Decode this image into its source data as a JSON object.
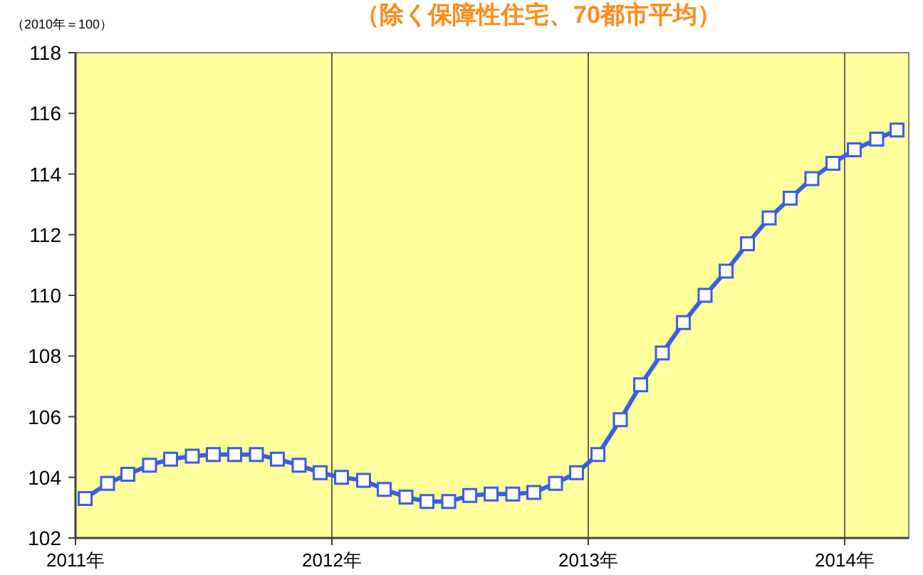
{
  "chart_data": {
    "type": "line",
    "title": "（除く保障性住宅、70都市平均）",
    "annotations": [
      "（2010年＝100）"
    ],
    "x": [
      "2011-01-15",
      "2011-02-15",
      "2011-03-15",
      "2011-04-15",
      "2011-05-15",
      "2011-06-15",
      "2011-07-15",
      "2011-08-15",
      "2011-09-15",
      "2011-10-15",
      "2011-11-15",
      "2011-12-15",
      "2012-01-15",
      "2012-02-15",
      "2012-03-15",
      "2012-04-15",
      "2012-05-15",
      "2012-06-15",
      "2012-07-15",
      "2012-08-15",
      "2012-09-15",
      "2012-10-15",
      "2012-11-15",
      "2012-12-15",
      "2013-01-15",
      "2013-02-15",
      "2013-03-15",
      "2013-04-15",
      "2013-05-15",
      "2013-06-15",
      "2013-07-15",
      "2013-08-15",
      "2013-09-15",
      "2013-10-15",
      "2013-11-15",
      "2013-12-15",
      "2014-01-15",
      "2014-02-15",
      "2014-03-15"
    ],
    "series": [
      {
        "color": "#3a5ee0",
        "values": [
          103.3,
          103.8,
          104.1,
          104.4,
          104.6,
          104.7,
          104.75,
          104.75,
          104.75,
          104.6,
          104.4,
          104.15,
          104.0,
          103.9,
          103.6,
          103.35,
          103.2,
          103.2,
          103.4,
          103.45,
          103.45,
          103.5,
          103.8,
          104.15,
          104.75,
          105.9,
          107.05,
          108.1,
          109.1,
          110.0,
          110.8,
          111.7,
          112.55,
          113.2,
          113.85,
          114.35,
          114.8,
          115.15,
          115.45
        ]
      }
    ],
    "xlim": [
      "2011-01-01",
      "2014-04-01"
    ],
    "xticks": [
      {
        "value": "2011-01-01",
        "label": "2011年"
      },
      {
        "value": "2012-01-01",
        "label": "2012年"
      },
      {
        "value": "2013-01-01",
        "label": "2013年"
      },
      {
        "value": "2014-01-01",
        "label": "2014年"
      }
    ],
    "ylim": [
      102,
      118
    ],
    "yticks": [
      102,
      104,
      106,
      108,
      110,
      112,
      114,
      116,
      118
    ],
    "grid": "x",
    "marker": "square",
    "line_style": "solid"
  }
}
